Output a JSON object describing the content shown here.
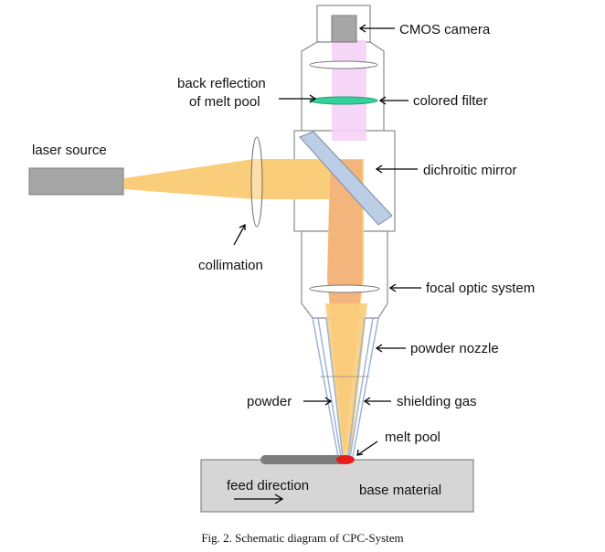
{
  "labels": {
    "cmos_camera": "CMOS camera",
    "back_reflection_line1": "back reflection",
    "back_reflection_line2": "of melt pool",
    "colored_filter": "colored filter",
    "laser_source": "laser source",
    "dichroitic_mirror": "dichroitic mirror",
    "collimation": "collimation",
    "focal_optic_system": "focal optic system",
    "powder_nozzle": "powder nozzle",
    "powder": "powder",
    "shielding_gas": "shielding gas",
    "melt_pool": "melt pool",
    "feed_direction": "feed direction",
    "base_material": "base material"
  },
  "caption": "Fig. 2. Schematic diagram of CPC-System",
  "colors": {
    "laser_beam": "#f9cd7a",
    "beam_core": "#f3b07c",
    "back_reflection": "#f6d3f6",
    "mirror": "#bccde6",
    "filter": "#33d29b",
    "camera": "#a6a6a6",
    "laser_source": "#a6a6a6",
    "base_material": "#d6d6d6",
    "melt_pool": "#e61c1c",
    "deposited_track": "#7c7c7c",
    "powder_stream": "#9fb4d6"
  }
}
